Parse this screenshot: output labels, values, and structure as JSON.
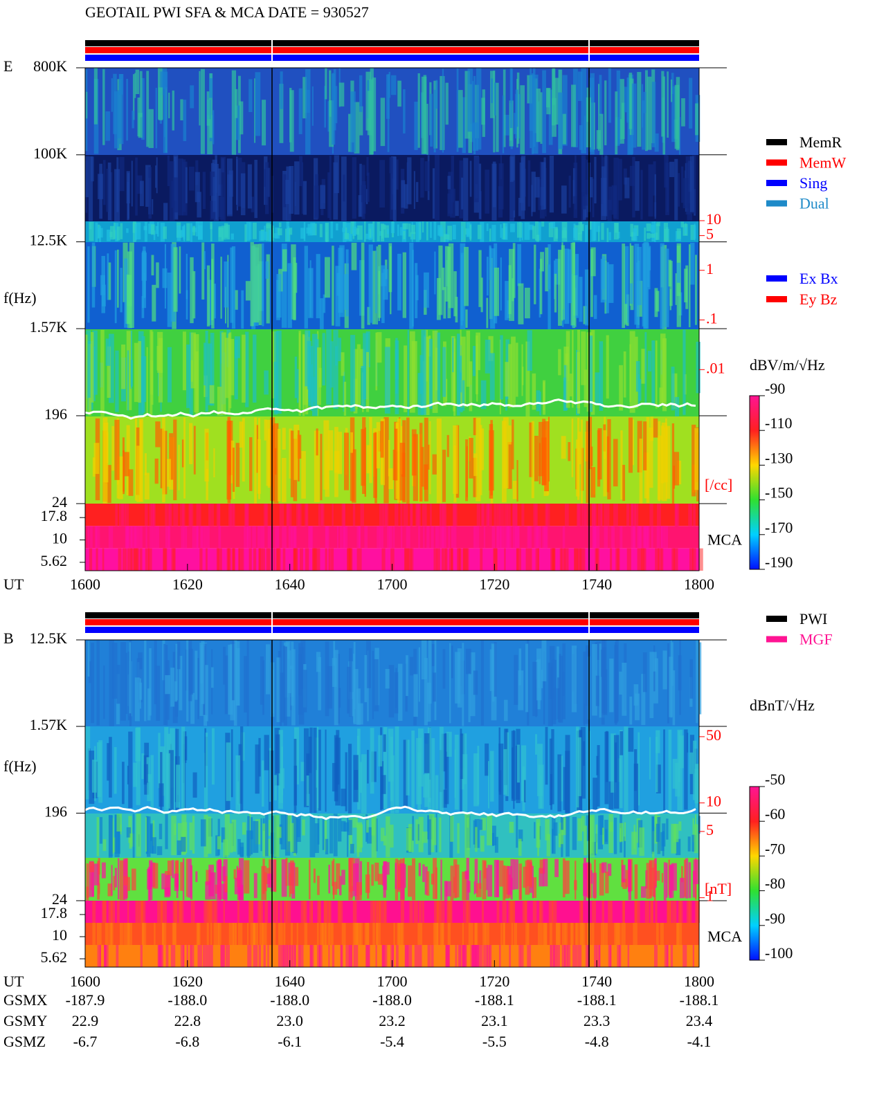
{
  "title": "GEOTAIL  PWI SFA & MCA   DATE = 930527",
  "chart_data": [
    {
      "type": "spectrogram",
      "panel": "E",
      "xlabel": "UT",
      "ylabel": "f(Hz)",
      "x": [
        "1600",
        "1620",
        "1640",
        "1700",
        "1720",
        "1740",
        "1800"
      ],
      "log_y": true,
      "ylim": [
        24,
        800000
      ],
      "yticks": [
        {
          "value": 800000,
          "label": "800K"
        },
        {
          "value": 100000,
          "label": "100K"
        },
        {
          "value": 12500,
          "label": "12.5K"
        },
        {
          "value": 1570,
          "label": "1.57K"
        },
        196,
        24
      ],
      "mca_label": "MCA",
      "mca_channels": [
        17.8,
        10,
        5.62
      ],
      "y2label": "[/cc]",
      "y2color": "#ff0000",
      "y2lim": [
        2e-05,
        12000
      ],
      "y2ticks": [
        10,
        5,
        1,
        {
          "value": 0.1,
          "label": ".1"
        },
        {
          "value": 0.01,
          "label": ".01"
        }
      ],
      "colorbar": {
        "label": "dBV/m/√Hz",
        "lim": [
          -190,
          -90
        ],
        "ticks": [
          -90,
          -110,
          -130,
          -150,
          -170,
          -190
        ]
      },
      "legend": [
        {
          "name": "MemR",
          "color": "#000000"
        },
        {
          "name": "MemW",
          "color": "#ff0000"
        },
        {
          "name": "Sing",
          "color": "#0000ff"
        },
        {
          "name": "Dual",
          "color": "#1e8ac8"
        }
      ],
      "legend2": [
        {
          "name": "Ex Bx",
          "color": "#0000ff"
        },
        {
          "name": "Ey Bz",
          "color": "#ff0000"
        }
      ]
    },
    {
      "type": "spectrogram",
      "panel": "B",
      "xlabel": "UT",
      "ylabel": "f(Hz)",
      "x": [
        "1600",
        "1620",
        "1640",
        "1700",
        "1720",
        "1740",
        "1800"
      ],
      "log_y": true,
      "ylim": [
        24,
        12500
      ],
      "yticks": [
        {
          "value": 12500,
          "label": "12.5K"
        },
        {
          "value": 1570,
          "label": "1.57K"
        },
        196,
        24
      ],
      "mca_label": "MCA",
      "mca_channels": [
        17.8,
        10,
        5.62
      ],
      "y2label": "[nT]",
      "y2color": "#ff0000",
      "y2lim": [
        0.93,
        525
      ],
      "y2ticks": [
        50,
        10,
        5,
        1
      ],
      "colorbar": {
        "label": "dBnT/√Hz",
        "lim": [
          -100,
          -50
        ],
        "ticks": [
          -50,
          -60,
          -70,
          -80,
          -90,
          -100
        ]
      },
      "legend": [
        {
          "name": "PWI",
          "color": "#000000"
        },
        {
          "name": "MGF",
          "color": "#ff1493"
        }
      ],
      "legend2": []
    }
  ],
  "orbit": {
    "rows": [
      [
        "GSMX",
        "-187.9",
        "-188.0",
        "-188.0",
        "-188.0",
        "-188.1",
        "-188.1",
        "-188.1"
      ],
      [
        "GSMY",
        "22.9",
        "22.8",
        "23.0",
        "23.2",
        "23.1",
        "23.3",
        "23.4"
      ],
      [
        "GSMZ",
        "-6.7",
        "-6.8",
        "-6.1",
        "-5.4",
        "-5.5",
        "-4.8",
        "-4.1"
      ]
    ]
  }
}
